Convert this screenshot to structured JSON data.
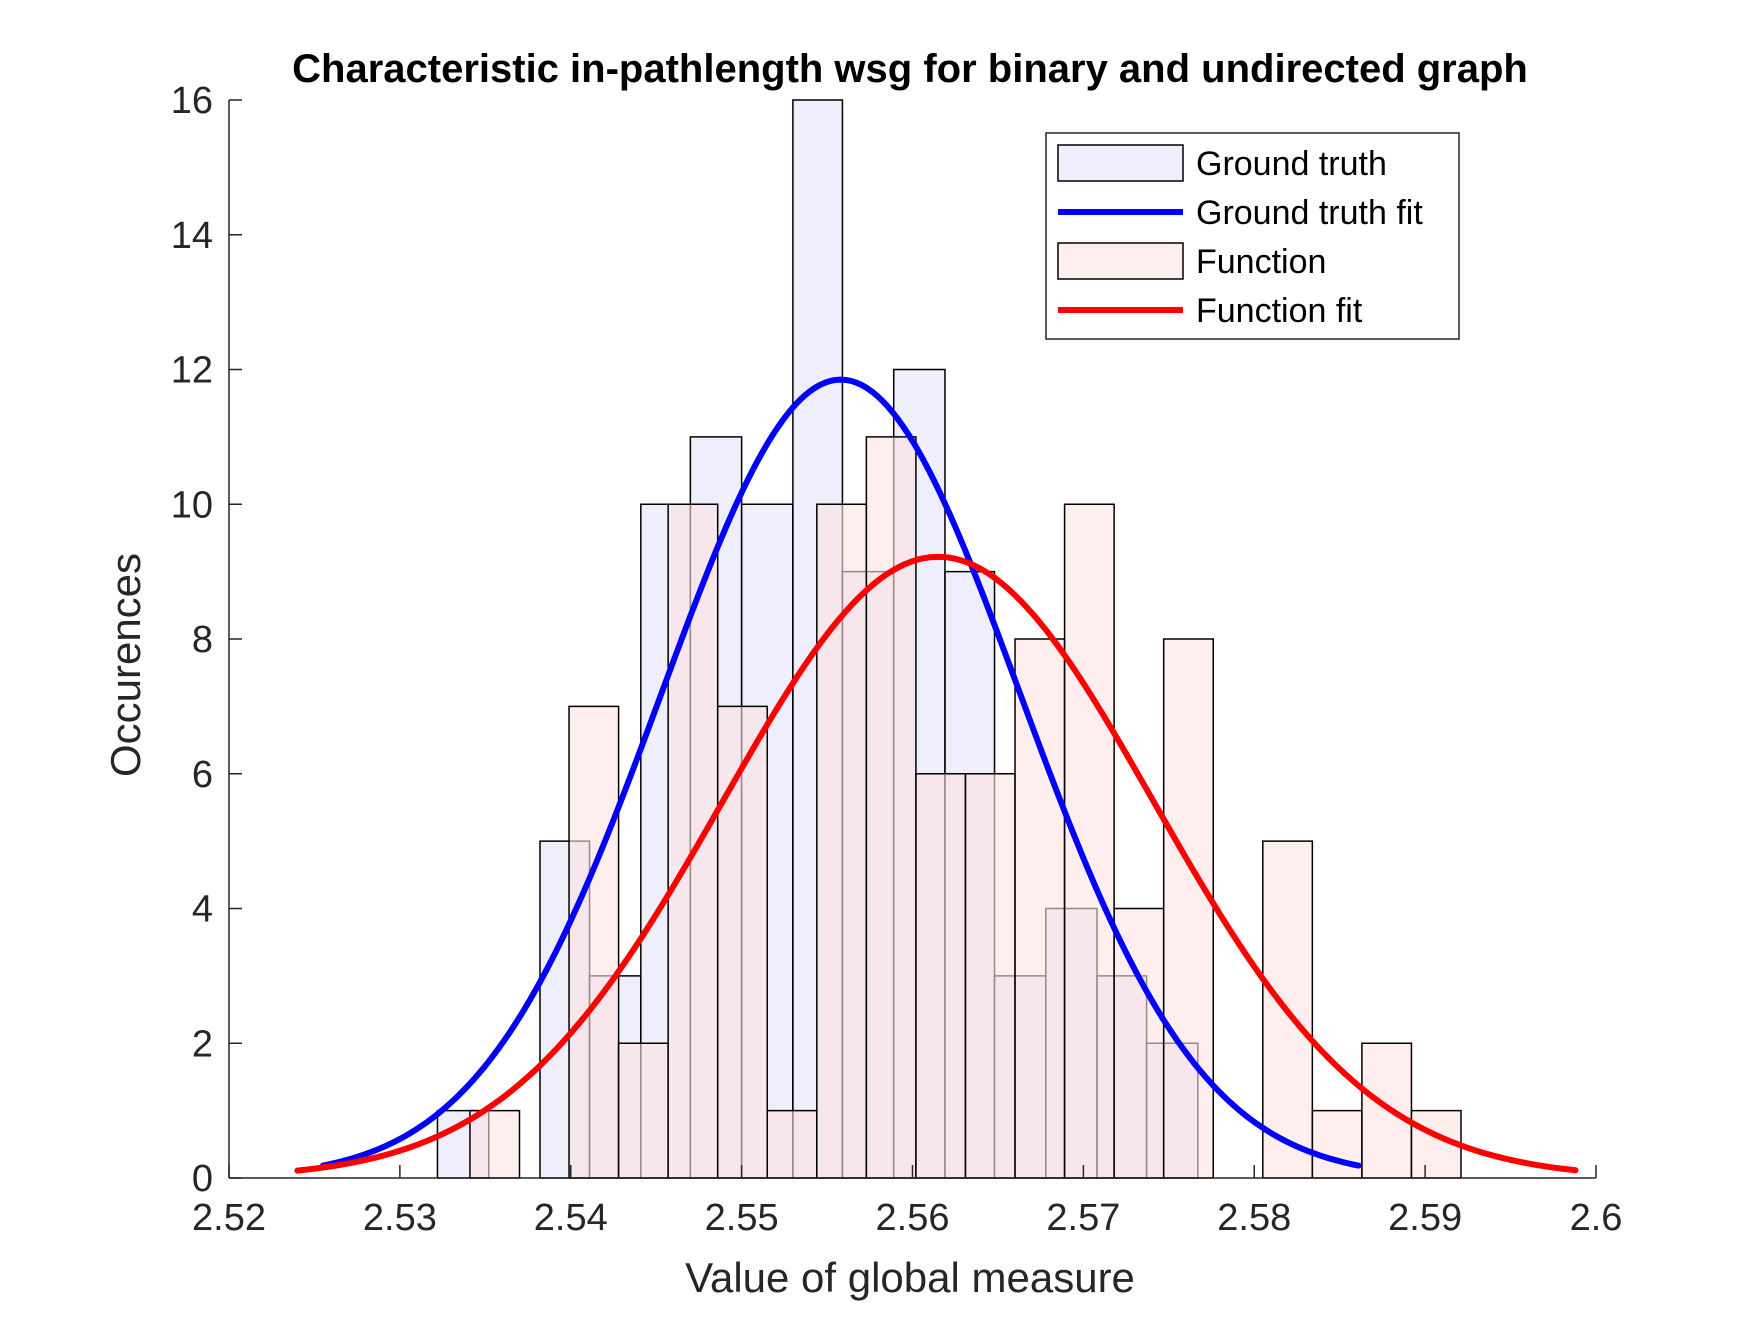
{
  "chart_data": {
    "type": "bar",
    "title": "Characteristic in-pathlength wsg for binary and undirected graph",
    "xlabel": "Value of global measure",
    "ylabel": "Occurences",
    "xlim": [
      2.52,
      2.6
    ],
    "ylim": [
      0,
      16
    ],
    "xticks": [
      "2.52",
      "2.53",
      "2.54",
      "2.55",
      "2.56",
      "2.57",
      "2.58",
      "2.59",
      "2.6"
    ],
    "yticks": [
      "0",
      "2",
      "4",
      "6",
      "8",
      "10",
      "12",
      "14",
      "16"
    ],
    "legend_position": "top-right",
    "grid": false,
    "series": [
      {
        "name": "Ground truth",
        "kind": "histogram",
        "color": "#e2e3fa",
        "bins": [
          {
            "x0": 2.5322,
            "x1": 2.5352,
            "count": 1
          },
          {
            "x0": 2.5382,
            "x1": 2.5411,
            "count": 5
          },
          {
            "x0": 2.5411,
            "x1": 2.5441,
            "count": 3
          },
          {
            "x0": 2.5441,
            "x1": 2.547,
            "count": 10
          },
          {
            "x0": 2.547,
            "x1": 2.55,
            "count": 11
          },
          {
            "x0": 2.55,
            "x1": 2.553,
            "count": 10
          },
          {
            "x0": 2.553,
            "x1": 2.5559,
            "count": 16
          },
          {
            "x0": 2.5559,
            "x1": 2.5589,
            "count": 9
          },
          {
            "x0": 2.5589,
            "x1": 2.5619,
            "count": 12
          },
          {
            "x0": 2.5619,
            "x1": 2.5648,
            "count": 9
          },
          {
            "x0": 2.5648,
            "x1": 2.5678,
            "count": 3
          },
          {
            "x0": 2.5678,
            "x1": 2.5708,
            "count": 4
          },
          {
            "x0": 2.5708,
            "x1": 2.5737,
            "count": 3
          },
          {
            "x0": 2.5737,
            "x1": 2.5767,
            "count": 2
          }
        ]
      },
      {
        "name": "Ground truth fit",
        "kind": "normal-fit",
        "color": "#0000ff",
        "mu": 2.5558,
        "sigma": 0.0105,
        "peak": 11.85,
        "x_range": [
          2.5255,
          2.5861
        ]
      },
      {
        "name": "Function",
        "kind": "histogram",
        "color": "#fde2e3",
        "bins": [
          {
            "x0": 2.5341,
            "x1": 2.537,
            "count": 1
          },
          {
            "x0": 2.5399,
            "x1": 2.5428,
            "count": 7
          },
          {
            "x0": 2.5428,
            "x1": 2.5457,
            "count": 2
          },
          {
            "x0": 2.5457,
            "x1": 2.5486,
            "count": 10
          },
          {
            "x0": 2.5486,
            "x1": 2.5515,
            "count": 7
          },
          {
            "x0": 2.5515,
            "x1": 2.5544,
            "count": 1
          },
          {
            "x0": 2.5544,
            "x1": 2.5573,
            "count": 10
          },
          {
            "x0": 2.5573,
            "x1": 2.5602,
            "count": 11
          },
          {
            "x0": 2.5602,
            "x1": 2.5631,
            "count": 6
          },
          {
            "x0": 2.5631,
            "x1": 2.566,
            "count": 6
          },
          {
            "x0": 2.566,
            "x1": 2.5689,
            "count": 8
          },
          {
            "x0": 2.5689,
            "x1": 2.5718,
            "count": 10
          },
          {
            "x0": 2.5718,
            "x1": 2.5747,
            "count": 4
          },
          {
            "x0": 2.5747,
            "x1": 2.5776,
            "count": 8
          },
          {
            "x0": 2.5805,
            "x1": 2.5834,
            "count": 5
          },
          {
            "x0": 2.5834,
            "x1": 2.5863,
            "count": 1
          },
          {
            "x0": 2.5863,
            "x1": 2.5892,
            "count": 2
          },
          {
            "x0": 2.5892,
            "x1": 2.5921,
            "count": 1
          }
        ]
      },
      {
        "name": "Function fit",
        "kind": "normal-fit",
        "color": "#ff0000",
        "mu": 2.5615,
        "sigma": 0.0126,
        "peak": 9.22,
        "x_range": [
          2.524,
          2.5988
        ]
      }
    ]
  }
}
